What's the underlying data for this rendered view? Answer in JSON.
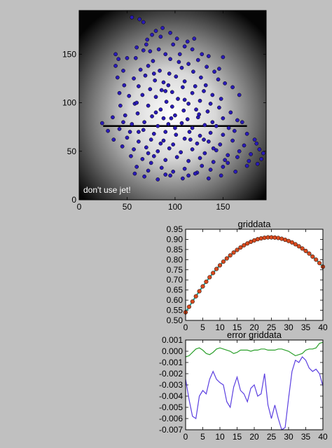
{
  "chart_data": [
    {
      "type": "scatter",
      "title": "",
      "annotation": "don't use jet!",
      "xlim": [
        0,
        195
      ],
      "ylim": [
        0,
        195
      ],
      "xticks": [
        "0",
        "50",
        "100",
        "150"
      ],
      "yticks": [
        "0",
        "50",
        "100",
        "150"
      ],
      "xtick_values": [
        0,
        50,
        100,
        150
      ],
      "ytick_values": [
        0,
        50,
        100,
        150
      ],
      "background": "radial gradient, white center to black edges",
      "point_color": "#2a1bb8",
      "line": {
        "x": [
          25,
          175
        ],
        "y": [
          76,
          76
        ],
        "color": "#000000"
      },
      "points": [
        [
          55,
          188
        ],
        [
          63,
          186
        ],
        [
          67,
          183
        ],
        [
          80,
          174
        ],
        [
          87,
          177
        ],
        [
          95,
          172
        ],
        [
          76,
          170
        ],
        [
          71,
          165
        ],
        [
          85,
          168
        ],
        [
          102,
          166
        ],
        [
          113,
          163
        ],
        [
          98,
          160
        ],
        [
          110,
          158
        ],
        [
          60,
          157
        ],
        [
          67,
          154
        ],
        [
          74,
          153
        ],
        [
          83,
          155
        ],
        [
          90,
          150
        ],
        [
          118,
          155
        ],
        [
          128,
          150
        ],
        [
          135,
          148
        ],
        [
          41,
          145
        ],
        [
          50,
          146
        ],
        [
          59,
          146
        ],
        [
          77,
          143
        ],
        [
          95,
          145
        ],
        [
          104,
          142
        ],
        [
          114,
          140
        ],
        [
          124,
          144
        ],
        [
          133,
          137
        ],
        [
          38,
          138
        ],
        [
          46,
          133
        ],
        [
          64,
          134
        ],
        [
          72,
          138
        ],
        [
          84,
          133
        ],
        [
          94,
          130
        ],
        [
          107,
          136
        ],
        [
          119,
          132
        ],
        [
          127,
          126
        ],
        [
          141,
          132
        ],
        [
          40,
          126
        ],
        [
          57,
          125
        ],
        [
          69,
          128
        ],
        [
          79,
          123
        ],
        [
          88,
          121
        ],
        [
          101,
          127
        ],
        [
          110,
          122
        ],
        [
          121,
          117
        ],
        [
          145,
          124
        ],
        [
          152,
          120
        ],
        [
          47,
          118
        ],
        [
          62,
          117
        ],
        [
          74,
          114
        ],
        [
          86,
          113
        ],
        [
          97,
          111
        ],
        [
          108,
          116
        ],
        [
          118,
          110
        ],
        [
          130,
          112
        ],
        [
          139,
          108
        ],
        [
          160,
          116
        ],
        [
          52,
          107
        ],
        [
          66,
          108
        ],
        [
          80,
          106
        ],
        [
          91,
          101
        ],
        [
          103,
          104
        ],
        [
          114,
          99
        ],
        [
          126,
          102
        ],
        [
          137,
          99
        ],
        [
          148,
          104
        ],
        [
          167,
          108
        ],
        [
          43,
          97
        ],
        [
          58,
          99
        ],
        [
          72,
          97
        ],
        [
          85,
          93
        ],
        [
          97,
          96
        ],
        [
          109,
          92
        ],
        [
          122,
          93
        ],
        [
          134,
          91
        ],
        [
          146,
          95
        ],
        [
          158,
          90
        ],
        [
          48,
          87
        ],
        [
          61,
          89
        ],
        [
          76,
          86
        ],
        [
          88,
          84
        ],
        [
          100,
          87
        ],
        [
          113,
          83
        ],
        [
          124,
          85
        ],
        [
          139,
          80
        ],
        [
          150,
          84
        ],
        [
          165,
          82
        ],
        [
          24,
          79
        ],
        [
          35,
          85
        ],
        [
          46,
          80
        ],
        [
          55,
          78
        ],
        [
          68,
          80
        ],
        [
          82,
          76
        ],
        [
          93,
          78
        ],
        [
          107,
          79
        ],
        [
          118,
          74
        ],
        [
          131,
          77
        ],
        [
          143,
          76
        ],
        [
          156,
          74
        ],
        [
          170,
          80
        ],
        [
          30,
          71
        ],
        [
          42,
          73
        ],
        [
          53,
          70
        ],
        [
          67,
          72
        ],
        [
          78,
          68
        ],
        [
          90,
          70
        ],
        [
          101,
          67
        ],
        [
          115,
          70
        ],
        [
          126,
          66
        ],
        [
          137,
          69
        ],
        [
          150,
          67
        ],
        [
          162,
          71
        ],
        [
          175,
          68
        ],
        [
          36,
          62
        ],
        [
          50,
          64
        ],
        [
          62,
          60
        ],
        [
          75,
          62
        ],
        [
          88,
          61
        ],
        [
          98,
          57
        ],
        [
          110,
          63
        ],
        [
          123,
          58
        ],
        [
          135,
          60
        ],
        [
          147,
          57
        ],
        [
          160,
          61
        ],
        [
          172,
          56
        ],
        [
          183,
          62
        ],
        [
          45,
          55
        ],
        [
          57,
          52
        ],
        [
          70,
          54
        ],
        [
          82,
          50
        ],
        [
          94,
          53
        ],
        [
          106,
          49
        ],
        [
          118,
          52
        ],
        [
          131,
          48
        ],
        [
          143,
          51
        ],
        [
          155,
          46
        ],
        [
          167,
          50
        ],
        [
          179,
          47
        ],
        [
          188,
          52
        ],
        [
          192,
          48
        ],
        [
          54,
          45
        ],
        [
          66,
          42
        ],
        [
          78,
          45
        ],
        [
          90,
          41
        ],
        [
          102,
          44
        ],
        [
          114,
          40
        ],
        [
          126,
          43
        ],
        [
          140,
          39
        ],
        [
          152,
          41
        ],
        [
          165,
          44
        ],
        [
          177,
          40
        ],
        [
          186,
          37
        ],
        [
          60,
          34
        ],
        [
          72,
          30
        ],
        [
          86,
          33
        ],
        [
          98,
          29
        ],
        [
          110,
          32
        ],
        [
          123,
          28
        ],
        [
          137,
          31
        ],
        [
          150,
          34
        ],
        [
          163,
          29
        ],
        [
          190,
          42
        ],
        [
          68,
          24
        ],
        [
          82,
          21
        ],
        [
          95,
          25
        ],
        [
          108,
          22
        ],
        [
          121,
          27
        ],
        [
          135,
          22
        ],
        [
          148,
          25
        ],
        [
          58,
          27
        ],
        [
          75,
          38
        ],
        [
          114,
          25
        ],
        [
          128,
          35
        ],
        [
          155,
          38
        ],
        [
          90,
          26
        ],
        [
          196,
          50
        ],
        [
          85,
          58
        ],
        [
          100,
          74
        ],
        [
          72,
          48
        ],
        [
          125,
          88
        ],
        [
          62,
          70
        ],
        [
          140,
          53
        ],
        [
          93,
          118
        ],
        [
          110,
          103
        ],
        [
          150,
          147
        ],
        [
          70,
          160
        ],
        [
          120,
          166
        ],
        [
          105,
          150
        ],
        [
          38,
          150
        ],
        [
          42,
          110
        ],
        [
          130,
          62
        ],
        [
          80,
          90
        ],
        [
          96,
          84
        ],
        [
          60,
          100
        ],
        [
          78,
          130
        ],
        [
          146,
          135
        ],
        [
          132,
          118
        ],
        [
          185,
          58
        ],
        [
          175,
          35
        ],
        [
          90,
          112
        ],
        [
          116,
          62
        ]
      ]
    },
    {
      "type": "scatter",
      "title": "griddata",
      "xlim": [
        0,
        40
      ],
      "ylim": [
        0.5,
        0.95
      ],
      "xticks": [
        "0",
        "5",
        "10",
        "15",
        "20",
        "25",
        "30",
        "35",
        "40"
      ],
      "yticks": [
        "0.50",
        "0.55",
        "0.60",
        "0.65",
        "0.70",
        "0.75",
        "0.80",
        "0.85",
        "0.90",
        "0.95"
      ],
      "xtick_values": [
        0,
        5,
        10,
        15,
        20,
        25,
        30,
        35,
        40
      ],
      "ytick_values": [
        0.5,
        0.55,
        0.6,
        0.65,
        0.7,
        0.75,
        0.8,
        0.85,
        0.9,
        0.95
      ],
      "series": [
        {
          "marker": "line",
          "color": "#2a9d8f",
          "x": [
            0,
            1,
            2,
            3,
            4,
            5,
            6,
            7,
            8,
            9,
            10,
            11,
            12,
            13,
            14,
            15,
            16,
            17,
            18,
            19,
            20,
            21,
            22,
            23,
            24,
            25,
            26,
            27,
            28,
            29,
            30,
            31,
            32,
            33,
            34,
            35,
            36,
            37,
            38,
            39,
            40
          ],
          "y": [
            0.54,
            0.567,
            0.593,
            0.619,
            0.644,
            0.668,
            0.691,
            0.713,
            0.734,
            0.754,
            0.772,
            0.79,
            0.806,
            0.821,
            0.835,
            0.848,
            0.86,
            0.871,
            0.88,
            0.888,
            0.895,
            0.901,
            0.905,
            0.908,
            0.91,
            0.91,
            0.909,
            0.907,
            0.903,
            0.898,
            0.892,
            0.885,
            0.876,
            0.866,
            0.855,
            0.843,
            0.83,
            0.815,
            0.8,
            0.783,
            0.765
          ]
        },
        {
          "marker": "circle",
          "color": "#d94a1e",
          "x": [
            0,
            1,
            2,
            3,
            4,
            5,
            6,
            7,
            8,
            9,
            10,
            11,
            12,
            13,
            14,
            15,
            16,
            17,
            18,
            19,
            20,
            21,
            22,
            23,
            24,
            25,
            26,
            27,
            28,
            29,
            30,
            31,
            32,
            33,
            34,
            35,
            36,
            37,
            38,
            39,
            40
          ],
          "y": [
            0.54,
            0.567,
            0.593,
            0.619,
            0.644,
            0.668,
            0.691,
            0.713,
            0.734,
            0.754,
            0.772,
            0.79,
            0.806,
            0.821,
            0.835,
            0.848,
            0.86,
            0.871,
            0.88,
            0.888,
            0.895,
            0.901,
            0.905,
            0.908,
            0.91,
            0.91,
            0.909,
            0.907,
            0.903,
            0.898,
            0.892,
            0.885,
            0.876,
            0.866,
            0.855,
            0.843,
            0.83,
            0.815,
            0.8,
            0.783,
            0.765
          ]
        }
      ]
    },
    {
      "type": "line",
      "title": "error griddata",
      "xlim": [
        0,
        40
      ],
      "ylim": [
        -0.007,
        0.001
      ],
      "xticks": [
        "0",
        "5",
        "10",
        "15",
        "20",
        "25",
        "30",
        "35",
        "40"
      ],
      "yticks": [
        "0.001",
        "0.000",
        "-0.001",
        "-0.002",
        "-0.003",
        "-0.004",
        "-0.005",
        "-0.006",
        "-0.007"
      ],
      "xtick_values": [
        0,
        5,
        10,
        15,
        20,
        25,
        30,
        35,
        40
      ],
      "ytick_values": [
        0.001,
        0.0,
        -0.001,
        -0.002,
        -0.003,
        -0.004,
        -0.005,
        -0.006,
        -0.007
      ],
      "series": [
        {
          "color": "#2ca02c",
          "x": [
            0,
            1,
            2,
            3,
            4,
            5,
            6,
            7,
            8,
            9,
            10,
            11,
            12,
            13,
            14,
            15,
            16,
            17,
            18,
            19,
            20,
            21,
            22,
            23,
            24,
            25,
            26,
            27,
            28,
            29,
            30,
            31,
            32,
            33,
            34,
            35,
            36,
            37,
            38,
            39,
            40
          ],
          "y": [
            -0.0005,
            -0.0004,
            -0.0001,
            0.0002,
            0.0003,
            0.0001,
            -0.0002,
            -0.0003,
            -0.0001,
            0.0002,
            0.0003,
            0.0002,
            0.0001,
            0.0,
            -0.0002,
            -0.0001,
            0.0001,
            0.0001,
            0.0001,
            0.0,
            0.0001,
            0.0001,
            0.0002,
            0.0002,
            0.0001,
            0.0001,
            0.0001,
            0.0002,
            0.0002,
            0.0001,
            0.0,
            -0.0002,
            -0.0004,
            -0.0003,
            -0.0002,
            0.0001,
            0.0002,
            0.0002,
            0.0003,
            0.0007,
            0.0008
          ]
        },
        {
          "color": "#5b3fe0",
          "x": [
            0,
            1,
            2,
            3,
            4,
            5,
            6,
            7,
            8,
            9,
            10,
            11,
            12,
            13,
            14,
            15,
            16,
            17,
            18,
            19,
            20,
            21,
            22,
            23,
            24,
            25,
            26,
            27,
            28,
            29,
            30,
            31,
            32,
            33,
            34,
            35,
            36,
            37,
            38,
            39,
            40
          ],
          "y": [
            -0.0025,
            -0.0043,
            -0.0058,
            -0.006,
            -0.004,
            -0.0035,
            -0.0038,
            -0.0025,
            -0.0018,
            -0.0025,
            -0.0028,
            -0.003,
            -0.0045,
            -0.005,
            -0.0032,
            -0.0023,
            -0.0035,
            -0.0038,
            -0.0045,
            -0.0033,
            -0.003,
            -0.004,
            -0.0038,
            -0.002,
            -0.0048,
            -0.006,
            -0.0048,
            -0.006,
            -0.007,
            -0.0068,
            -0.0042,
            -0.0018,
            -0.0008,
            -0.001,
            -0.0005,
            -0.0008,
            -0.0015,
            -0.0018,
            -0.0016,
            -0.002,
            -0.0031
          ]
        }
      ]
    }
  ]
}
